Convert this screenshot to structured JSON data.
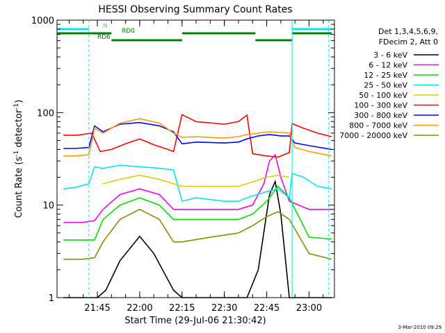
{
  "chart_data": {
    "type": "line",
    "title": "HESSI Observing Summary Count Rates",
    "xlabel": "Start Time (29-Jul-06 21:30:42)",
    "ylabel": "Count Rate (s⁻¹ detector⁻¹)",
    "ylabel_main": "Count Rate (s",
    "ylabel_sup1": "-1",
    "ylabel_mid": " detector",
    "ylabel_sup2": "-1",
    "ylabel_end": ")",
    "y_scale": "log",
    "ylim": [
      1,
      1000
    ],
    "xlim": [
      "21:30:42",
      "23:09:00"
    ],
    "x_ticks": [
      "21:45",
      "22:00",
      "22:15",
      "22:30",
      "22:45",
      "23:00"
    ],
    "y_ticks": [
      "1",
      "10",
      "100",
      "1000"
    ],
    "grid": false,
    "legend_placement": "right",
    "legend_header": [
      "Det 1,3,4,5,6,9,",
      "FDecim 2, Att 0"
    ],
    "footer_date": "3-Mar-2010 09:29",
    "annotations": [
      {
        "text": "N",
        "color": "#00e5ee"
      },
      {
        "text": "RD0",
        "color": "#008000"
      },
      {
        "text": "RD6",
        "color": "#008000"
      }
    ],
    "series": [
      {
        "name": "3 - 6 keV",
        "color": "#000000",
        "x": [
          "21:33",
          "21:45",
          "21:48",
          "21:53",
          "22:00",
          "22:05",
          "22:12",
          "22:15",
          "22:30",
          "22:38",
          "22:42",
          "22:46",
          "22:48",
          "22:50",
          "22:53",
          "23:00",
          "23:08"
        ],
        "values": [
          1,
          1,
          1.2,
          2.5,
          4.6,
          3,
          1.2,
          1,
          1,
          1,
          2,
          13,
          18,
          8,
          1,
          1,
          1
        ]
      },
      {
        "name": "6 - 12 keV",
        "color": "#ee00ee",
        "x": [
          "21:33",
          "21:40",
          "21:44",
          "21:47",
          "21:53",
          "22:00",
          "22:07",
          "22:12",
          "22:15",
          "22:25",
          "22:35",
          "22:40",
          "22:44",
          "22:46",
          "22:48",
          "22:50",
          "22:53",
          "23:00",
          "23:08"
        ],
        "values": [
          6.5,
          6.5,
          6.8,
          9,
          13,
          15,
          13,
          9,
          9,
          9,
          9,
          10,
          17,
          30,
          35,
          20,
          11,
          9,
          9
        ]
      },
      {
        "name": "12 - 25 keV",
        "color": "#00dd00",
        "x": [
          "21:33",
          "21:40",
          "21:44",
          "21:47",
          "21:53",
          "22:00",
          "22:07",
          "22:12",
          "22:15",
          "22:25",
          "22:35",
          "22:40",
          "22:45",
          "22:49",
          "22:53",
          "23:00",
          "23:08"
        ],
        "values": [
          4.2,
          4.2,
          4.2,
          7,
          10,
          12,
          10,
          7,
          7,
          7,
          7,
          8,
          11,
          16,
          12,
          4.5,
          4.3
        ]
      },
      {
        "name": "25 - 50 keV",
        "color": "#00e5ee",
        "x": [
          "21:33",
          "21:37",
          "21:42",
          "21:44",
          "21:47",
          "21:53",
          "22:00",
          "22:07",
          "22:12",
          "22:15",
          "22:20",
          "22:30",
          "22:35",
          "22:38",
          "22:45",
          "22:49",
          "22:53",
          "22:54",
          "22:58",
          "23:03",
          "23:08"
        ],
        "values": [
          15,
          15.5,
          17,
          26,
          25,
          27,
          26,
          25,
          24,
          11,
          12,
          11,
          11,
          12,
          14,
          15,
          12,
          22,
          20,
          16,
          15
        ]
      },
      {
        "name": "50 - 100 keV",
        "color": "#ddcc00",
        "x": [
          "21:47",
          "21:53",
          "22:00",
          "22:07",
          "22:12",
          "22:15",
          "22:35",
          "22:38",
          "22:45",
          "22:49",
          "22:53"
        ],
        "values": [
          17,
          19,
          21,
          19,
          17,
          16,
          16,
          17,
          20,
          21,
          20
        ]
      },
      {
        "name": "100 - 300 keV",
        "color": "#ff0000",
        "x": [
          "21:33",
          "21:38",
          "21:43",
          "21:46",
          "21:50",
          "21:55",
          "22:00",
          "22:05",
          "22:10",
          "22:12",
          "22:15",
          "22:20",
          "22:30",
          "22:35",
          "22:38",
          "22:40",
          "22:45",
          "22:49",
          "22:53",
          "22:54",
          "22:58",
          "23:03",
          "23:08"
        ],
        "values": [
          57,
          57,
          60,
          38,
          40,
          46,
          52,
          45,
          40,
          38,
          95,
          80,
          75,
          80,
          94,
          36,
          34,
          33,
          37,
          76,
          68,
          60,
          55
        ]
      },
      {
        "name": "300 - 800 keV",
        "color": "#0000ff",
        "x": [
          "21:33",
          "21:37",
          "21:42",
          "21:44",
          "21:47",
          "21:53",
          "22:00",
          "22:07",
          "22:12",
          "22:15",
          "22:20",
          "22:30",
          "22:35",
          "22:38",
          "22:42",
          "22:46",
          "22:50",
          "22:53",
          "22:55",
          "23:00",
          "23:08"
        ],
        "values": [
          41,
          41,
          42,
          72,
          62,
          75,
          78,
          72,
          62,
          46,
          48,
          47,
          48,
          52,
          56,
          58,
          56,
          56,
          47,
          44,
          40
        ]
      },
      {
        "name": "800 - 7000 keV",
        "color": "#ff9900",
        "x": [
          "21:33",
          "21:37",
          "21:42",
          "21:44",
          "21:47",
          "21:53",
          "22:00",
          "22:07",
          "22:12",
          "22:15",
          "22:20",
          "22:30",
          "22:35",
          "22:38",
          "22:42",
          "22:46",
          "22:50",
          "22:53",
          "22:55",
          "23:00",
          "23:08"
        ],
        "values": [
          34,
          34,
          35,
          68,
          60,
          77,
          86,
          77,
          60,
          54,
          55,
          53,
          55,
          58,
          60,
          62,
          61,
          60,
          42,
          38,
          34
        ]
      },
      {
        "name": "7000 - 20000 keV",
        "color": "#8b8b00",
        "x": [
          "21:33",
          "21:40",
          "21:44",
          "21:47",
          "21:53",
          "22:00",
          "22:07",
          "22:12",
          "22:15",
          "22:25",
          "22:35",
          "22:40",
          "22:45",
          "22:49",
          "22:53",
          "23:00",
          "23:08"
        ],
        "values": [
          2.6,
          2.6,
          2.7,
          4,
          7,
          9,
          7,
          4,
          4,
          4.5,
          5,
          6,
          7.5,
          8.5,
          7,
          3,
          2.6
        ]
      }
    ]
  }
}
